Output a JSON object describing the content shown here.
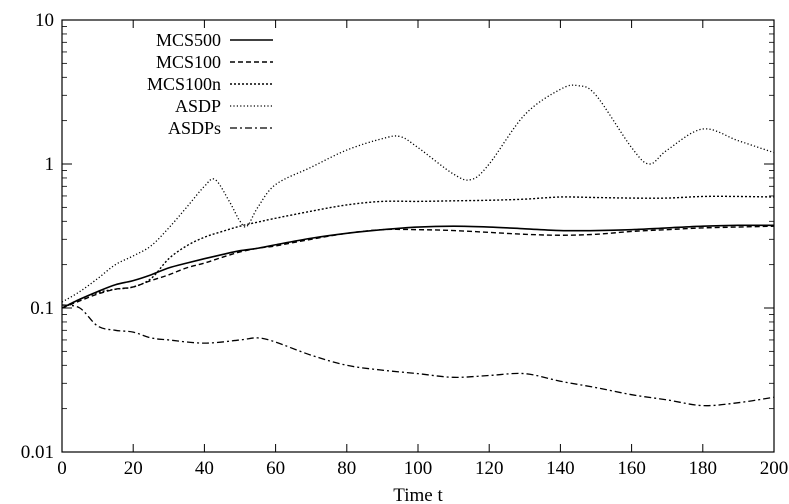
{
  "chart_data": {
    "type": "line",
    "title": "",
    "xlabel": "Time t",
    "ylabel": "",
    "xlim": [
      0,
      200
    ],
    "ylim": [
      0.01,
      10
    ],
    "yscale": "log",
    "grid": false,
    "legend_position": "top-left",
    "xticks": [
      0,
      20,
      40,
      60,
      80,
      100,
      120,
      140,
      160,
      180,
      200
    ],
    "xtick_labels": [
      "0",
      "20",
      "40",
      "60",
      "80",
      "100",
      "120",
      "140",
      "160",
      "180",
      "200"
    ],
    "yticks": [
      0.01,
      0.1,
      1,
      10
    ],
    "ytick_labels": [
      "0.01",
      "0.1",
      "1",
      "10"
    ],
    "series": [
      {
        "name": "MCS500",
        "style": "solid",
        "x": [
          0,
          5,
          10,
          15,
          20,
          25,
          30,
          35,
          40,
          45,
          50,
          55,
          60,
          70,
          80,
          90,
          100,
          110,
          120,
          130,
          140,
          150,
          160,
          170,
          180,
          190,
          200
        ],
        "y": [
          0.1,
          0.115,
          0.13,
          0.145,
          0.155,
          0.17,
          0.19,
          0.205,
          0.22,
          0.235,
          0.25,
          0.26,
          0.275,
          0.305,
          0.33,
          0.35,
          0.365,
          0.37,
          0.365,
          0.355,
          0.345,
          0.345,
          0.35,
          0.36,
          0.37,
          0.375,
          0.375
        ]
      },
      {
        "name": "MCS100",
        "style": "dashed",
        "x": [
          0,
          5,
          10,
          15,
          20,
          25,
          30,
          35,
          40,
          45,
          50,
          55,
          60,
          70,
          80,
          90,
          100,
          110,
          120,
          130,
          140,
          150,
          160,
          170,
          180,
          190,
          200
        ],
        "y": [
          0.1,
          0.112,
          0.125,
          0.135,
          0.14,
          0.155,
          0.17,
          0.19,
          0.205,
          0.225,
          0.245,
          0.26,
          0.27,
          0.3,
          0.33,
          0.35,
          0.35,
          0.345,
          0.335,
          0.325,
          0.32,
          0.325,
          0.34,
          0.35,
          0.36,
          0.365,
          0.37
        ]
      },
      {
        "name": "MCS100n",
        "style": "dotted",
        "x": [
          0,
          5,
          10,
          15,
          20,
          25,
          30,
          35,
          40,
          45,
          50,
          55,
          60,
          70,
          80,
          90,
          100,
          110,
          120,
          130,
          140,
          150,
          160,
          170,
          180,
          190,
          200
        ],
        "y": [
          0.1,
          0.115,
          0.128,
          0.135,
          0.14,
          0.16,
          0.22,
          0.27,
          0.31,
          0.34,
          0.37,
          0.395,
          0.42,
          0.47,
          0.52,
          0.55,
          0.55,
          0.555,
          0.56,
          0.57,
          0.59,
          0.585,
          0.58,
          0.58,
          0.595,
          0.595,
          0.59
        ]
      },
      {
        "name": "ASDP",
        "style": "sparse-dotted",
        "x": [
          0,
          5,
          10,
          15,
          20,
          25,
          30,
          35,
          40,
          43,
          47,
          50,
          52,
          55,
          60,
          70,
          80,
          90,
          95,
          100,
          110,
          115,
          120,
          130,
          140,
          145,
          150,
          160,
          165,
          170,
          180,
          190,
          200
        ],
        "y": [
          0.11,
          0.13,
          0.16,
          0.2,
          0.23,
          0.27,
          0.36,
          0.5,
          0.7,
          0.78,
          0.55,
          0.4,
          0.37,
          0.5,
          0.72,
          0.95,
          1.25,
          1.5,
          1.55,
          1.3,
          0.85,
          0.78,
          1.0,
          2.2,
          3.3,
          3.5,
          3.0,
          1.3,
          1.0,
          1.25,
          1.75,
          1.45,
          1.2
        ]
      },
      {
        "name": "ASDPs",
        "style": "dash-dot",
        "x": [
          0,
          5,
          10,
          15,
          20,
          25,
          30,
          40,
          50,
          55,
          60,
          70,
          80,
          90,
          100,
          110,
          120,
          130,
          140,
          150,
          160,
          170,
          180,
          190,
          200
        ],
        "y": [
          0.105,
          0.1,
          0.075,
          0.07,
          0.068,
          0.062,
          0.06,
          0.057,
          0.06,
          0.062,
          0.058,
          0.047,
          0.04,
          0.037,
          0.035,
          0.033,
          0.034,
          0.035,
          0.031,
          0.028,
          0.025,
          0.023,
          0.021,
          0.022,
          0.024
        ]
      }
    ]
  }
}
